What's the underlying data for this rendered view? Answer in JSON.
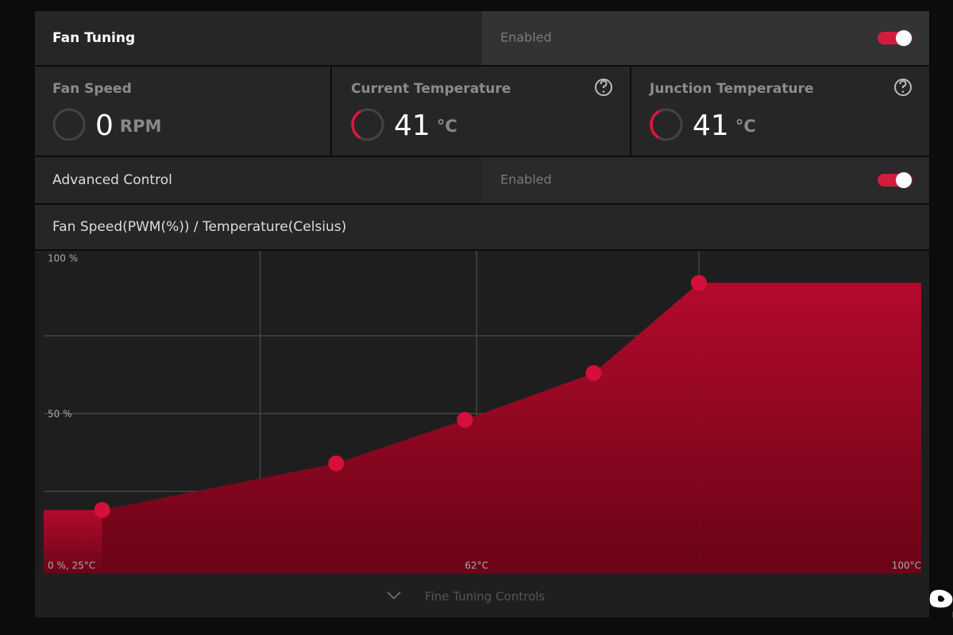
{
  "header": {
    "title": "Fan Tuning",
    "status": "Enabled",
    "enabled": true
  },
  "metrics": [
    {
      "label": "Fan Speed",
      "value": 0,
      "unit": "RPM",
      "help": false
    },
    {
      "label": "Current Temperature",
      "value": 41,
      "unit": "°C",
      "help": true
    },
    {
      "label": "Junction Temperature",
      "value": 41,
      "unit": "°C",
      "help": true
    }
  ],
  "advanced": {
    "title": "Advanced Control",
    "status": "Enabled",
    "enabled": true
  },
  "fan_curve": {
    "type": "area",
    "title": "Fan Speed(PWM(%)) / Temperature(Celsius)",
    "x": [
      30,
      50,
      61,
      72,
      81
    ],
    "values": [
      19,
      34,
      48,
      63,
      92
    ],
    "color": "#c8102e",
    "xlim": [
      25,
      100
    ],
    "ylim": [
      0,
      100
    ],
    "xticks": [
      {
        "value": 25,
        "label": "0 %, 25°C"
      },
      {
        "value": 62,
        "label": "62°C"
      },
      {
        "value": 100,
        "label": "100°C"
      }
    ],
    "yticks": [
      {
        "value": 100,
        "label": "100 %"
      },
      {
        "value": 50,
        "label": "50 %"
      }
    ],
    "xgrid": [
      43.5,
      62,
      81
    ],
    "ygrid": [
      25,
      50,
      75
    ],
    "grid": true
  },
  "footer": {
    "label": "Fine Tuning Controls"
  },
  "watermark": "آچاره"
}
